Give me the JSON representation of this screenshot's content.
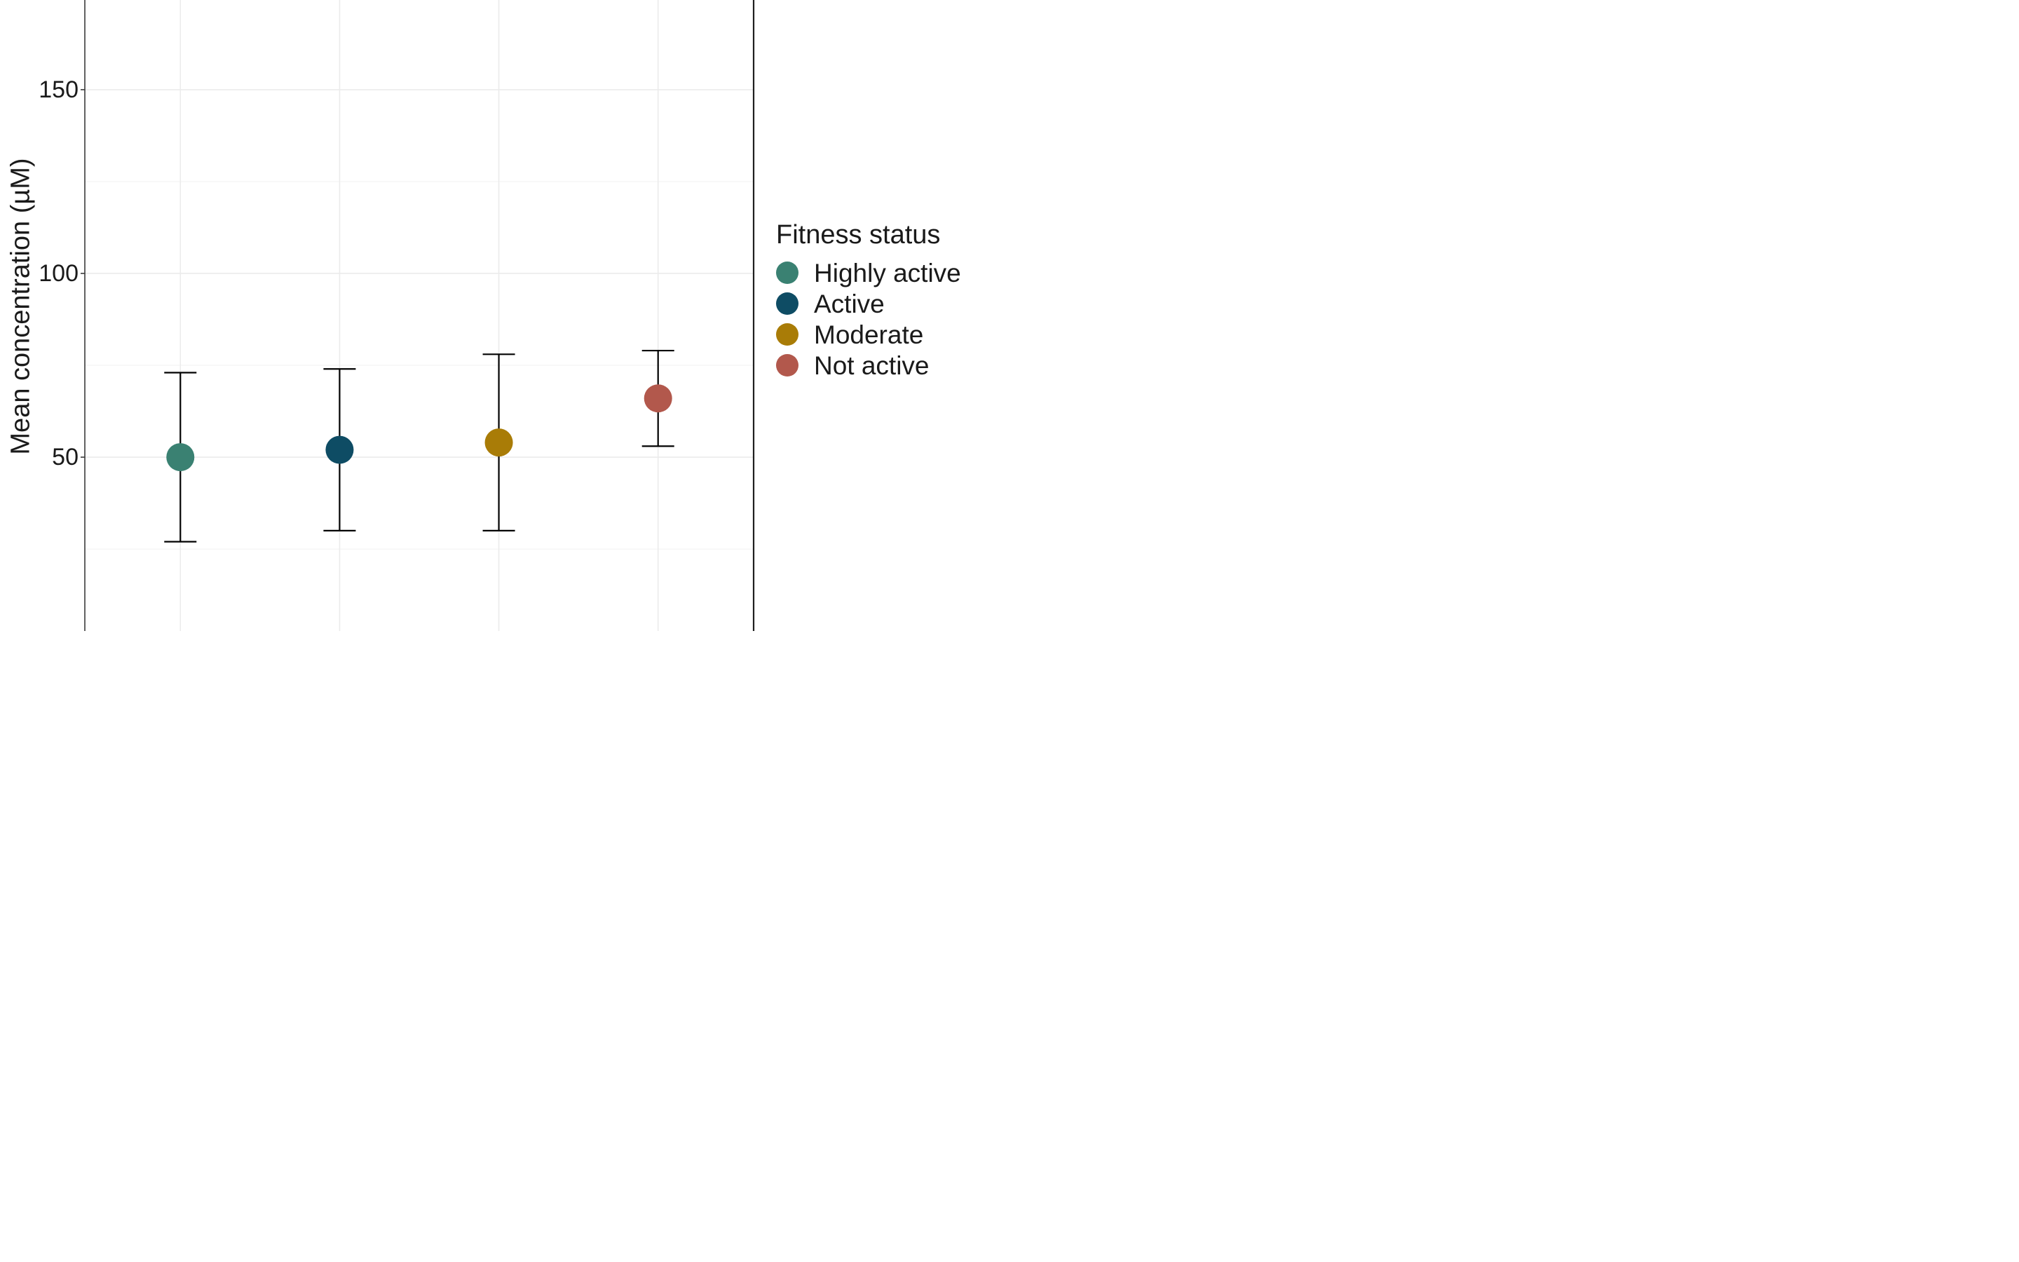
{
  "chart_data": {
    "type": "scatter",
    "title": "",
    "xlabel": "",
    "ylabel": "Mean concentration (µM)",
    "legend_title": "Fitness status",
    "legend_position": "right",
    "grid": true,
    "ylim_visible": [
      2.7,
      174.4
    ],
    "yticks": [
      {
        "label": "150",
        "value": 150
      },
      {
        "label": "100",
        "value": 100
      },
      {
        "label": "50",
        "value": 50
      }
    ],
    "yticks_minor": [
      125,
      75,
      25
    ],
    "categories": [
      "Highly active",
      "Active",
      "Moderate",
      "Not active"
    ],
    "series": [
      {
        "name": "Highly active",
        "color": "#3A8172",
        "mean": 50,
        "ci_low": 27,
        "ci_high": 73
      },
      {
        "name": "Active",
        "color": "#0E4C64",
        "mean": 52,
        "ci_low": 30,
        "ci_high": 74
      },
      {
        "name": "Moderate",
        "color": "#A97C07",
        "mean": 54,
        "ci_low": 30,
        "ci_high": 78
      },
      {
        "name": "Not active",
        "color": "#B2584C",
        "mean": 66,
        "ci_low": 53,
        "ci_high": 79
      }
    ],
    "colors": {
      "grid_major": "#EBEBEB",
      "grid_minor": "#F2F2F2",
      "axis_line": "#3A3A3A",
      "panel_border_right": "#1F1F1F",
      "errorbar": "#000000",
      "text": "#1A1A1A",
      "background": "#FFFFFF"
    }
  }
}
